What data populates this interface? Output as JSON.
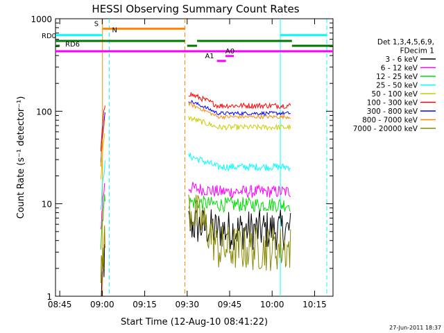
{
  "chart_data": {
    "type": "line",
    "title": "HESSI Observing Summary Count Rates",
    "xlabel": "Start Time (12-Aug-10 08:41:22)",
    "ylabel": "Count Rate (s⁻¹ detector⁻¹)",
    "x_range_minutes": [
      3.0,
      101.0
    ],
    "y_range": [
      1,
      1000
    ],
    "y_scale": "log",
    "x_ticks": [
      {
        "m": 4.5,
        "label": "08:45"
      },
      {
        "m": 19.5,
        "label": "09:00"
      },
      {
        "m": 34.5,
        "label": "09:15"
      },
      {
        "m": 49.5,
        "label": "09:30"
      },
      {
        "m": 64.5,
        "label": "09:45"
      },
      {
        "m": 79.5,
        "label": "10:00"
      },
      {
        "m": 94.5,
        "label": "10:15"
      }
    ],
    "y_ticks": [
      {
        "v": 1,
        "label": "1"
      },
      {
        "v": 10,
        "label": "10"
      },
      {
        "v": 100,
        "label": "100"
      },
      {
        "v": 1000,
        "label": "1000"
      }
    ],
    "legend": {
      "header": [
        "Det 1,3,4,5,6,9,",
        "FDecim 1"
      ],
      "placement": "right"
    },
    "series": [
      {
        "name": "3 - 6 keV",
        "color": "#000000",
        "level": 5.2,
        "noise": 0.22,
        "pre": 1.6,
        "early": 6.0
      },
      {
        "name": "6 - 12 keV",
        "color": "#ff00ff",
        "level": 13.5,
        "noise": 0.07,
        "pre": 10.0,
        "early": 15.0
      },
      {
        "name": "12 - 25 keV",
        "color": "#00dd00",
        "level": 9.8,
        "noise": 0.08,
        "pre": 7.0,
        "early": 10.5
      },
      {
        "name": "25 - 50 keV",
        "color": "#00ffff",
        "level": 25.0,
        "noise": 0.04,
        "pre": 16.0,
        "early": 33.0
      },
      {
        "name": "50 - 100 keV",
        "color": "#cccc00",
        "level": 67.0,
        "noise": 0.03,
        "pre": 35.0,
        "early": 85.0
      },
      {
        "name": "100 - 300 keV",
        "color": "#ff0000",
        "level": 115.0,
        "noise": 0.03,
        "pre": 70.0,
        "early": 155.0
      },
      {
        "name": "300 - 800 keV",
        "color": "#0000ff",
        "level": 95.0,
        "noise": 0.02,
        "pre": 55.0,
        "early": 130.0
      },
      {
        "name": "800 - 7000 keV",
        "color": "#ff8800",
        "level": 87.0,
        "noise": 0.02,
        "pre": 50.0,
        "early": 120.0
      },
      {
        "name": "7000 - 20000 keV",
        "color": "#888800",
        "level": 3.3,
        "noise": 0.25,
        "pre": 2.5,
        "early": 9.0
      }
    ],
    "data_segments_minutes": [
      [
        19.0,
        20.5
      ],
      [
        50.0,
        86.0
      ]
    ],
    "vertical_markers": [
      {
        "m": 19.6,
        "color": "#ff8800",
        "style": "solid"
      },
      {
        "m": 22.0,
        "color": "#00ffff",
        "style": "dashed"
      },
      {
        "m": 48.7,
        "color": "#ff8800",
        "style": "dashed"
      },
      {
        "m": 82.4,
        "color": "#00ffff",
        "style": "solid"
      },
      {
        "m": 98.8,
        "color": "#00ffff",
        "style": "dashed"
      }
    ],
    "flag_bars": [
      {
        "label": "S",
        "color": "#ff8800",
        "value": 780,
        "segments": [
          [
            19.6,
            48.7
          ]
        ]
      },
      {
        "label": "N",
        "color": "#00ffff",
        "value": 665,
        "segments": [
          [
            3.0,
            19.6
          ],
          [
            82.4,
            98.8
          ]
        ]
      },
      {
        "label": "RD0",
        "color": "#007700",
        "value": 575,
        "segments": [
          [
            3.0,
            48.7
          ],
          [
            53.0,
            86.5
          ]
        ]
      },
      {
        "label": "RD6",
        "color": "#007700",
        "value": 510,
        "segments": [
          [
            3.0,
            4.5
          ],
          [
            49.5,
            53.0
          ],
          [
            86.5,
            101.0
          ]
        ]
      },
      {
        "label": "",
        "color": "#ff00ff",
        "value": 445,
        "segments": [
          [
            3.0,
            101.0
          ]
        ]
      },
      {
        "label": "A0",
        "color": "#ff00ff",
        "value": 395,
        "segments": [
          [
            63.0,
            66.0
          ]
        ]
      },
      {
        "label": "A1",
        "color": "#ff00ff",
        "value": 350,
        "segments": [
          [
            60.0,
            63.2
          ]
        ]
      }
    ],
    "footer": "27-Jun-2011 18:37"
  }
}
